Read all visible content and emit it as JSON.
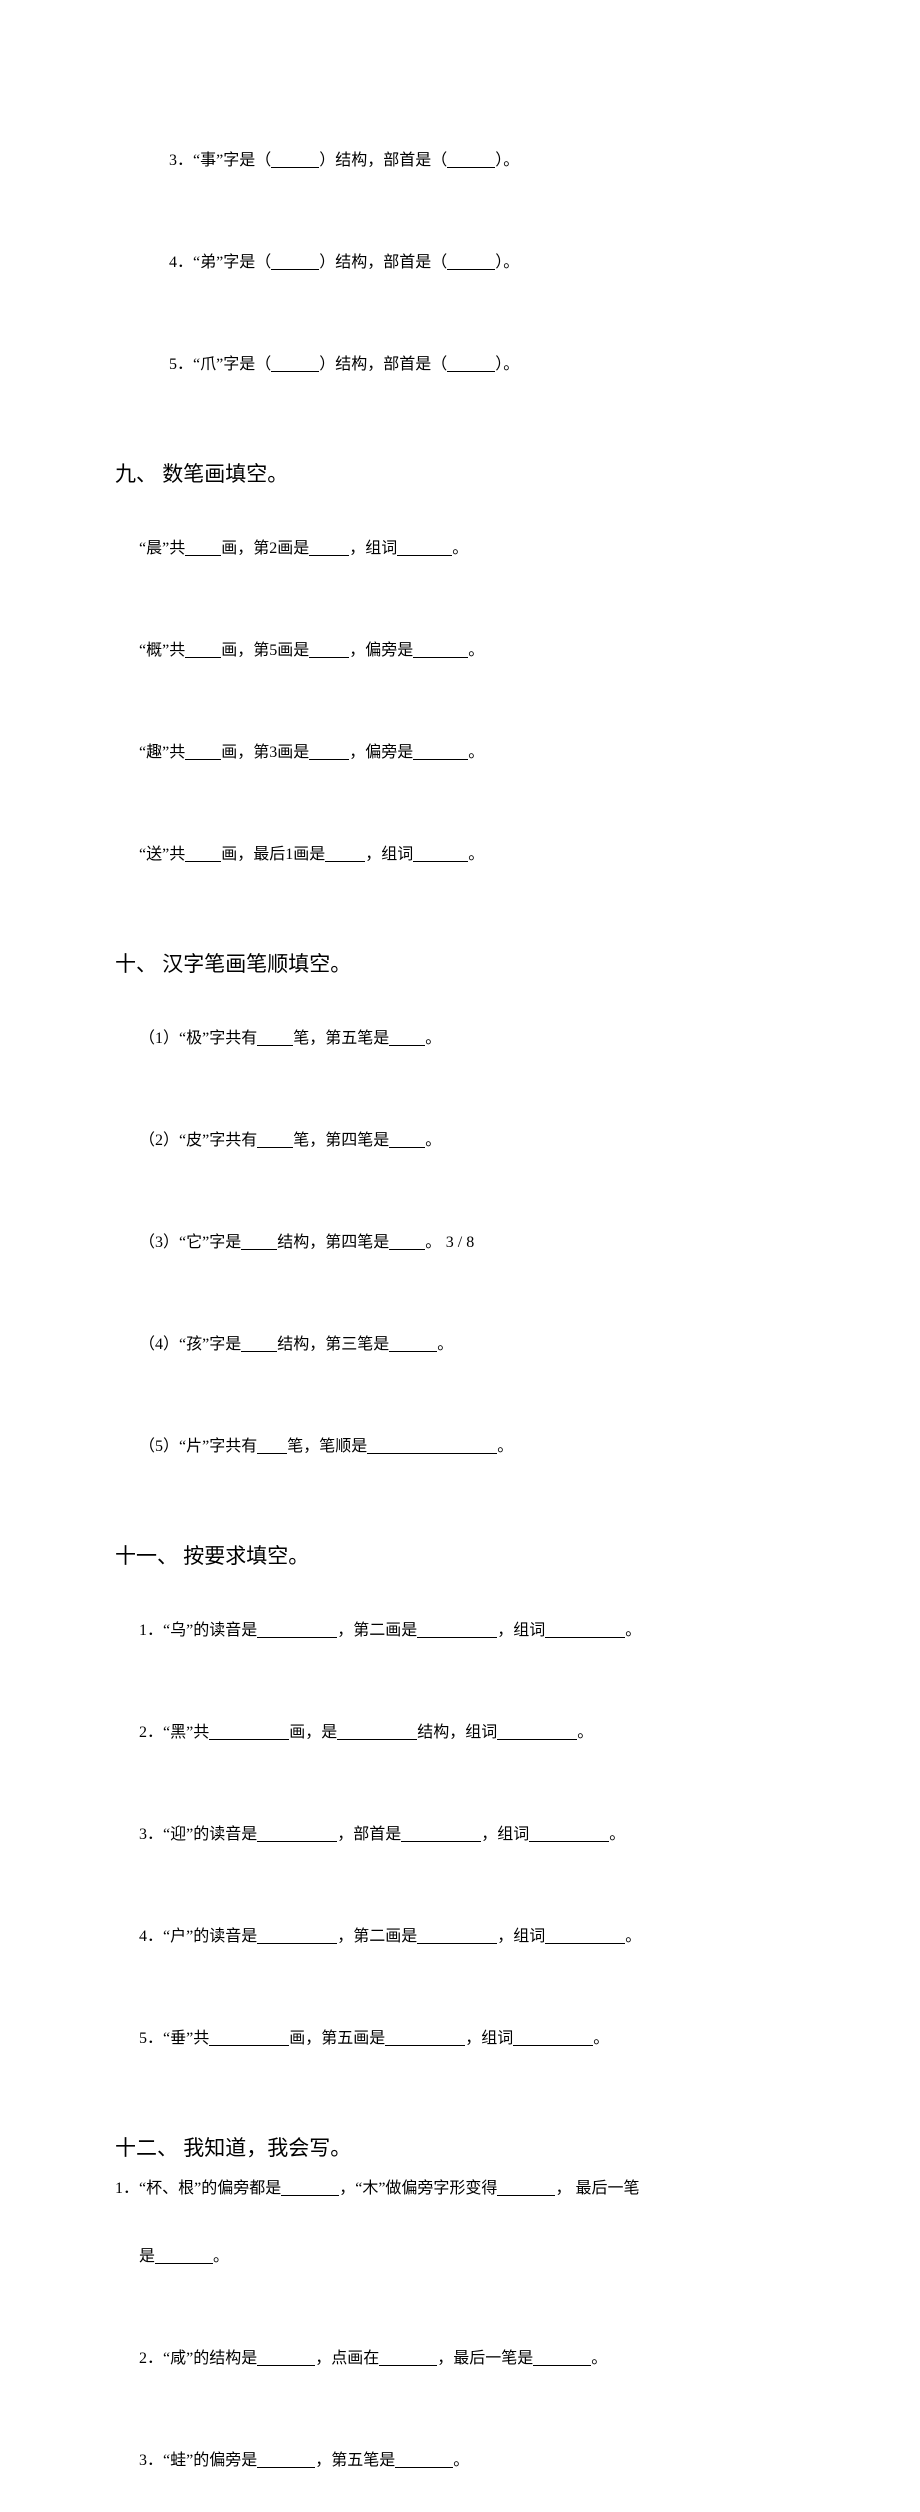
{
  "s8": {
    "items": [
      {
        "num": "3．",
        "char": "事"
      },
      {
        "num": "4．",
        "char": "弟"
      },
      {
        "num": "5．",
        "char": "爪"
      }
    ],
    "tpl_a": "“",
    "tpl_b": "”字是（",
    "tpl_c": "）结构，部首是（",
    "tpl_d": "）。"
  },
  "s9": {
    "heading": "九、 数笔画填空。",
    "lines": [
      {
        "a": "“晨”共",
        "b": "画，第2画是",
        "c": "，组词",
        "d": "。"
      },
      {
        "a": "“概”共",
        "b": "画，第5画是",
        "c": "，偏旁是",
        "d": "。"
      },
      {
        "a": "“趣”共",
        "b": "画，第3画是",
        "c": "，偏旁是",
        "d": "。"
      },
      {
        "a": "“送”共",
        "b": "画，最后1画是",
        "c": "，组词",
        "d": "。"
      }
    ]
  },
  "s10": {
    "heading": "十、 汉字笔画笔顺填空。",
    "lines": [
      {
        "a": "（1）“极”字共有",
        "b": "笔，第五笔是",
        "c": "。"
      },
      {
        "a": "（2）“皮”字共有",
        "b": "笔，第四笔是",
        "c": "。"
      },
      {
        "a": "（3）“它”字是",
        "b": "结构，第四笔是",
        "c": "。"
      },
      {
        "a": "（4）“孩”字是",
        "b": "结构，第三笔是",
        "c": "。"
      },
      {
        "a": "（5）“片”字共有",
        "b": "笔，笔顺是",
        "c": "。"
      }
    ]
  },
  "s11": {
    "heading": "十一、 按要求填空。",
    "lines": [
      {
        "a": "1．“乌”的读音是",
        "b": "，第二画是",
        "c": "，组词",
        "d": "。"
      },
      {
        "a": "2．“黑”共",
        "b": "画，是",
        "c": "结构，组词",
        "d": "。"
      },
      {
        "a": "3．“迎”的读音是",
        "b": "，部首是",
        "c": "，组词",
        "d": "。"
      },
      {
        "a": "4．“户”的读音是",
        "b": "，第二画是",
        "c": "，组词",
        "d": "。"
      },
      {
        "a": "5．“垂”共",
        "b": "画，第五画是",
        "c": "，组词",
        "d": "。"
      }
    ]
  },
  "s12": {
    "heading": "十二、 我知道，我会写。",
    "l1a": "1．“杯、根”的偏旁都是",
    "l1b": "，“木”做偏旁字形变得",
    "l1c": "， 最后一笔",
    "l1d": "是",
    "l1e": "。",
    "l2a": "2．“咸”的结构是",
    "l2b": "，点画在",
    "l2c": "，最后一笔是",
    "l2d": "。",
    "l3a": "3．“蛙”的偏旁是",
    "l3b": "，第五笔是",
    "l3c": "。"
  },
  "footer": "3 / 8",
  "blank": {
    "w48": 48,
    "w40": 40,
    "w55": 55,
    "w36": 36,
    "w80": 80,
    "w90": 80,
    "w130": 130,
    "w60": 58
  }
}
